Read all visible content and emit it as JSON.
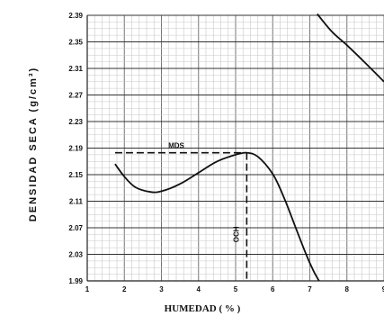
{
  "chart_data": {
    "type": "line",
    "title": "",
    "xlabel": "HUMEDAD ( % )",
    "ylabel": "DENSIDAD  SECA   (g/cm³)",
    "xlim": [
      1,
      9
    ],
    "ylim": [
      1.99,
      2.39
    ],
    "x_ticks": [
      "1",
      "2",
      "3",
      "4",
      "5",
      "6",
      "7",
      "8",
      "9"
    ],
    "y_ticks": [
      "1.99",
      "2.03",
      "2.07",
      "2.11",
      "2.15",
      "2.19",
      "2.23",
      "2.27",
      "2.31",
      "2.35",
      "2.39"
    ],
    "grid": true,
    "series": [
      {
        "name": "",
        "x": [
          1.75,
          2.0,
          2.3,
          2.7,
          3.0,
          3.5,
          4.0,
          4.5,
          5.0,
          5.3,
          5.6,
          6.0,
          6.3,
          6.6,
          6.9,
          7.1,
          7.25
        ],
        "y": [
          2.166,
          2.147,
          2.131,
          2.124,
          2.125,
          2.136,
          2.153,
          2.17,
          2.18,
          2.183,
          2.177,
          2.151,
          2.116,
          2.073,
          2.03,
          2.005,
          1.99
        ]
      },
      {
        "name": "",
        "x": [
          7.2,
          7.6,
          8.0,
          8.5,
          9.0
        ],
        "y": [
          2.392,
          2.365,
          2.345,
          2.318,
          2.29
        ]
      }
    ],
    "annotations": [
      {
        "text": "MDS",
        "x": 5.3,
        "y": 2.183,
        "kind": "horizontal-dashed"
      },
      {
        "text": "OCH",
        "x": 5.3,
        "y": 2.183,
        "kind": "vertical-dashed"
      }
    ]
  }
}
